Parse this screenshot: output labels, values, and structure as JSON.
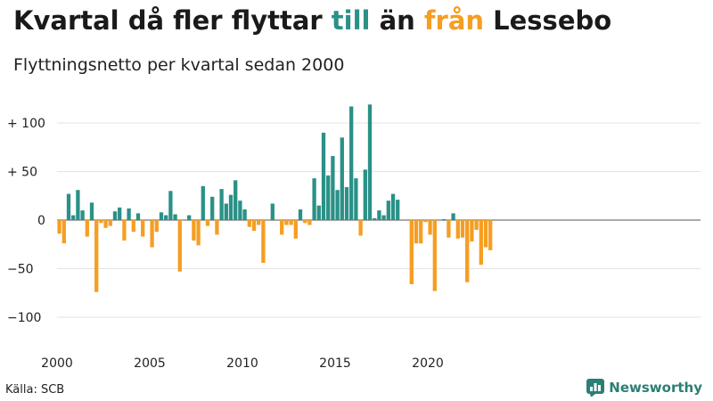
{
  "title": {
    "part1": "Kvartal då fler flyttar ",
    "till": "till",
    "mid": " än ",
    "fran": "från",
    "part2": " Lessebo"
  },
  "subtitle": "Flyttningsnetto per kvartal sedan 2000",
  "source": "Källa: SCB",
  "brand": "Newsworthy",
  "colors": {
    "positive": "#2a9187",
    "negative": "#f59e22",
    "grid": "#e3e3e3",
    "zero": "#555555"
  },
  "chart_data": {
    "type": "bar",
    "start_year": 2000,
    "ylim": [
      -130,
      130
    ],
    "yticks": [
      {
        "value": 100,
        "label": "+ 100"
      },
      {
        "value": 50,
        "label": "+  50"
      },
      {
        "value": 0,
        "label": "0"
      },
      {
        "value": -50,
        "label": "−50"
      },
      {
        "value": -100,
        "label": "−100"
      }
    ],
    "xticks": [
      "2000",
      "2005",
      "2010",
      "2015",
      "2020"
    ],
    "categories": [
      "2000Q1",
      "2000Q2",
      "2000Q3",
      "2000Q4",
      "2001Q1",
      "2001Q2",
      "2001Q3",
      "2001Q4",
      "2002Q1",
      "2002Q2",
      "2002Q3",
      "2002Q4",
      "2003Q1",
      "2003Q2",
      "2003Q3",
      "2003Q4",
      "2004Q1",
      "2004Q2",
      "2004Q3",
      "2004Q4",
      "2005Q1",
      "2005Q2",
      "2005Q3",
      "2005Q4",
      "2006Q1",
      "2006Q2",
      "2006Q3",
      "2006Q4",
      "2007Q1",
      "2007Q2",
      "2007Q3",
      "2007Q4",
      "2008Q1",
      "2008Q2",
      "2008Q3",
      "2008Q4",
      "2009Q1",
      "2009Q2",
      "2009Q3",
      "2009Q4",
      "2010Q1",
      "2010Q2",
      "2010Q3",
      "2010Q4",
      "2011Q1",
      "2011Q2",
      "2011Q3",
      "2011Q4",
      "2012Q1",
      "2012Q2",
      "2012Q3",
      "2012Q4",
      "2013Q1",
      "2013Q2",
      "2013Q3",
      "2013Q4",
      "2014Q1",
      "2014Q2",
      "2014Q3",
      "2014Q4",
      "2015Q1",
      "2015Q2",
      "2015Q3",
      "2015Q4",
      "2016Q1",
      "2016Q2",
      "2016Q3",
      "2016Q4",
      "2017Q1",
      "2017Q2",
      "2017Q3",
      "2017Q4",
      "2018Q1",
      "2018Q2",
      "2018Q3",
      "2018Q4",
      "2019Q1",
      "2019Q2",
      "2019Q3",
      "2019Q4",
      "2020Q1",
      "2020Q2",
      "2020Q3",
      "2020Q4",
      "2021Q1",
      "2021Q2",
      "2021Q3",
      "2021Q4",
      "2022Q1",
      "2022Q2",
      "2022Q3",
      "2022Q4",
      "2023Q1",
      "2023Q2",
      "2023Q3"
    ],
    "values": [
      -14,
      -24,
      27,
      5,
      31,
      10,
      -17,
      18,
      -74,
      -3,
      -8,
      -6,
      9,
      13,
      -21,
      12,
      -12,
      7,
      -17,
      0,
      -28,
      -12,
      8,
      5,
      30,
      6,
      -53,
      0,
      5,
      -21,
      -26,
      35,
      -6,
      24,
      -15,
      32,
      17,
      26,
      41,
      20,
      11,
      -7,
      -11,
      -5,
      -44,
      0,
      17,
      0,
      -15,
      -5,
      -5,
      -19,
      11,
      -3,
      -5,
      43,
      15,
      90,
      46,
      66,
      31,
      85,
      34,
      117,
      43,
      -16,
      52,
      119,
      2,
      10,
      5,
      20,
      27,
      21,
      0,
      0,
      -66,
      -24,
      -24,
      -2,
      -15,
      -73,
      0,
      1,
      -18,
      7,
      -19,
      -18,
      -64,
      -22,
      -10,
      -46,
      -28,
      -31,
      0
    ]
  }
}
